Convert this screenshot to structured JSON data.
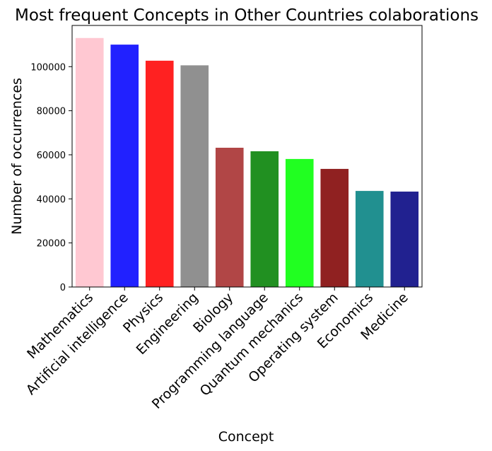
{
  "chart_data": {
    "type": "bar",
    "title": "Most frequent Concepts in Other Countries colaborations",
    "xlabel": "Concept",
    "ylabel": "Number of occurrences",
    "categories": [
      "Mathematics",
      "Artificial intelligence",
      "Physics",
      "Engineering",
      "Biology",
      "Programming language",
      "Quantum mechanics",
      "Operating system",
      "Economics",
      "Medicine"
    ],
    "values": [
      113000,
      110000,
      102700,
      100600,
      63200,
      61600,
      58100,
      53600,
      43600,
      43300
    ],
    "colors": [
      "#ffc0cb",
      "#0000ff",
      "#ff0000",
      "#808080",
      "#a52a2a",
      "#008000",
      "#00ff00",
      "#800000",
      "#008080",
      "#000080"
    ],
    "ylim": [
      0,
      118700
    ],
    "yticks": [
      0,
      20000,
      40000,
      60000,
      80000,
      100000
    ],
    "ytick_labels": [
      "0",
      "20000",
      "40000",
      "60000",
      "80000",
      "100000"
    ],
    "grid": false,
    "legend": "none"
  }
}
